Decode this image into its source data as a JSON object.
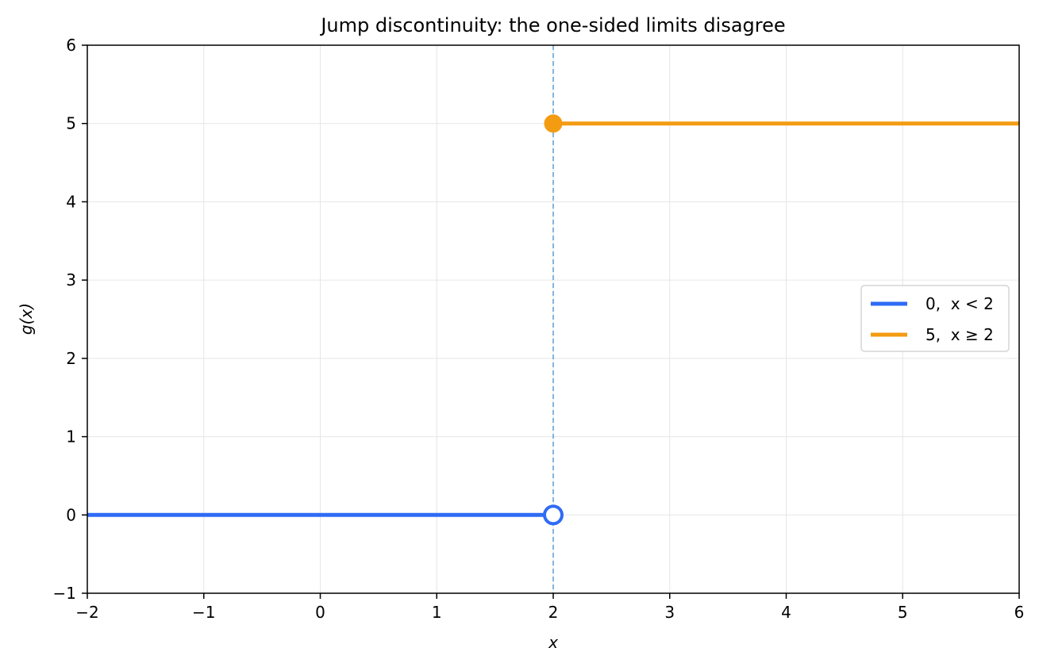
{
  "chart_data": {
    "type": "line",
    "title": "Jump discontinuity: the one-sided limits disagree",
    "xlabel": "x",
    "ylabel": "g(x)",
    "xlim": [
      -2,
      6
    ],
    "ylim": [
      -1,
      6
    ],
    "x_ticks": [
      -2,
      -1,
      0,
      1,
      2,
      3,
      4,
      5,
      6
    ],
    "x_tick_labels": [
      "−2",
      "−1",
      "0",
      "1",
      "2",
      "3",
      "4",
      "5",
      "6"
    ],
    "y_ticks": [
      -1,
      0,
      1,
      2,
      3,
      4,
      5,
      6
    ],
    "y_tick_labels": [
      "−1",
      "0",
      "1",
      "2",
      "3",
      "4",
      "5",
      "6"
    ],
    "grid": true,
    "legend_position": "center-right",
    "series": [
      {
        "name": "0,  x < 2",
        "color": "#2f6bf5",
        "points": [
          [
            -2,
            0
          ],
          [
            2,
            0
          ]
        ],
        "endpoint": {
          "x": 2,
          "y": 0,
          "style": "open"
        }
      },
      {
        "name": "5,  x ≥ 2",
        "color": "#f39c12",
        "points": [
          [
            2,
            5
          ],
          [
            6,
            5
          ]
        ],
        "endpoint": {
          "x": 2,
          "y": 5,
          "style": "closed"
        }
      }
    ],
    "vertical_reference_line": {
      "x": 2,
      "color": "#5b9bd5",
      "style": "dashed"
    }
  }
}
